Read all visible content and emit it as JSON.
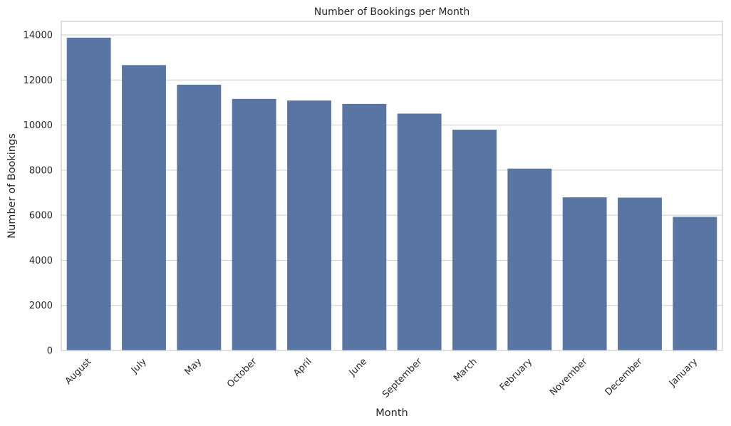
{
  "chart_data": {
    "type": "bar",
    "title": "Number of Bookings per Month",
    "xlabel": "Month",
    "ylabel": "Number of Bookings",
    "categories": [
      "August",
      "July",
      "May",
      "October",
      "April",
      "June",
      "September",
      "March",
      "February",
      "November",
      "December",
      "January"
    ],
    "values": [
      13877,
      12661,
      11791,
      11160,
      11089,
      10939,
      10508,
      9794,
      8068,
      6794,
      6780,
      5929
    ],
    "ylim": [
      0,
      14600
    ],
    "yticks": [
      0,
      2000,
      4000,
      6000,
      8000,
      10000,
      12000,
      14000
    ],
    "grid": "horizontal",
    "bar_color": "#5975a4"
  }
}
